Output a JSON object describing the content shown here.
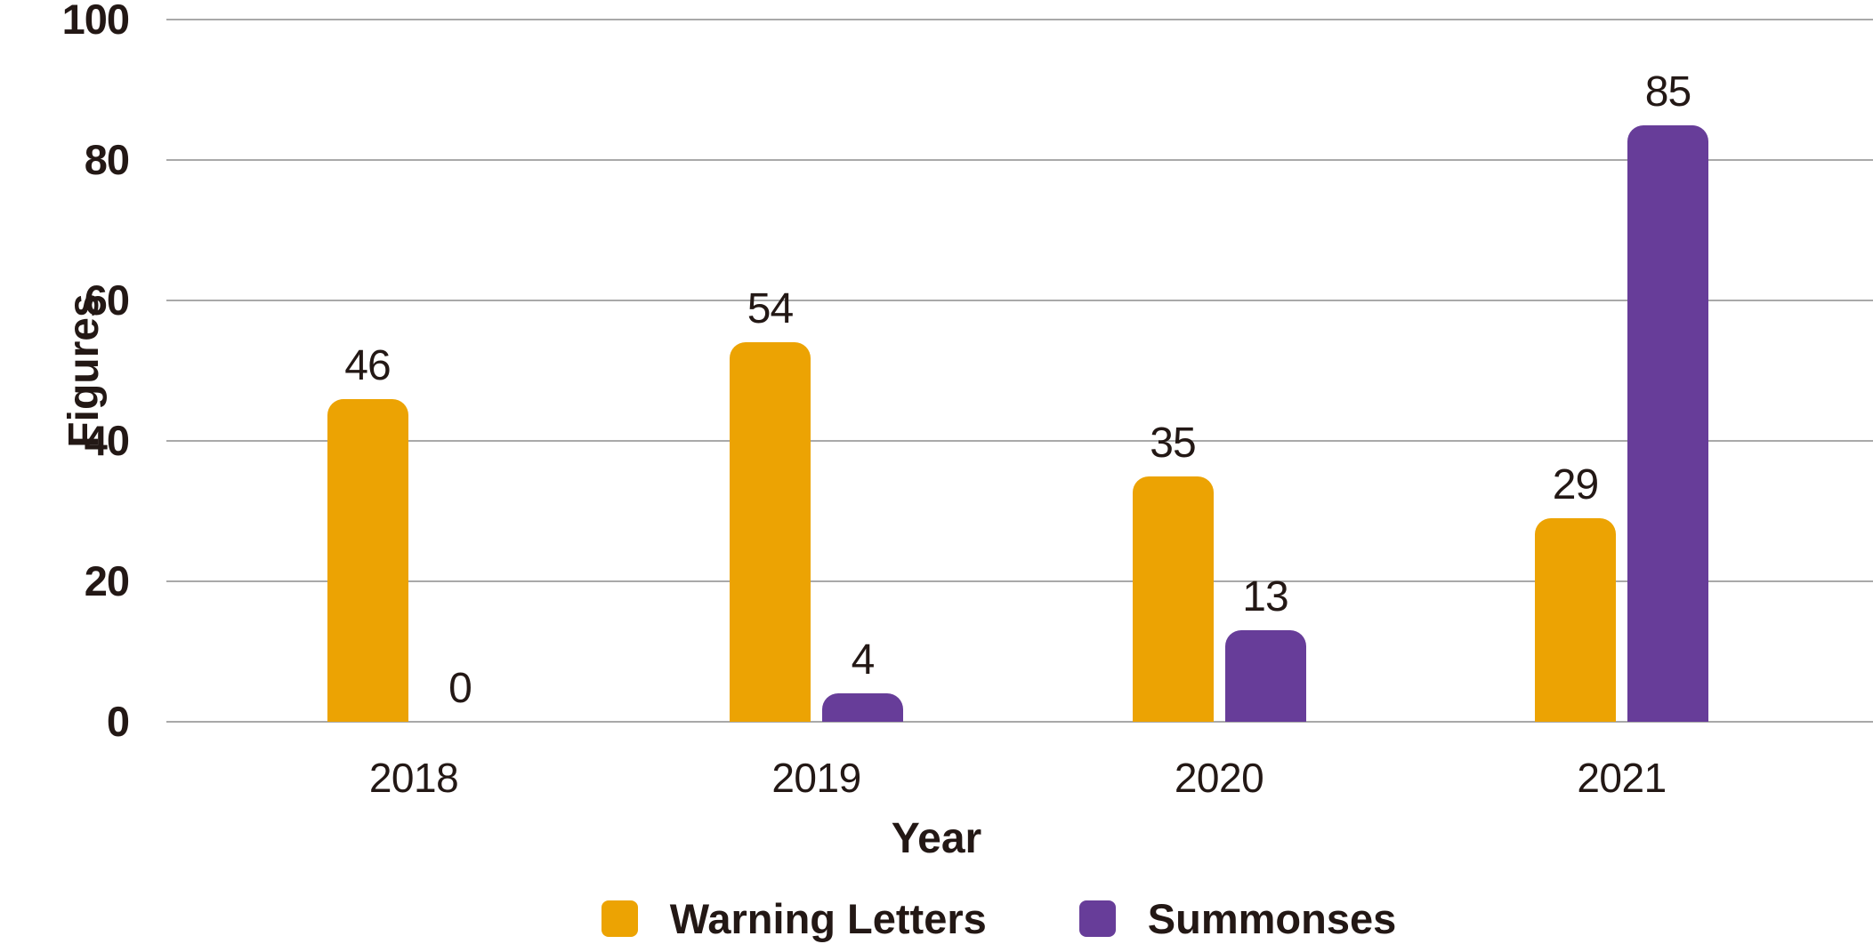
{
  "chart_data": {
    "type": "bar",
    "title": "",
    "categories": [
      "2018",
      "2019",
      "2020",
      "2021"
    ],
    "series": [
      {
        "name": "Warning Letters",
        "color": "#ECA303",
        "values": [
          46,
          54,
          35,
          29
        ]
      },
      {
        "name": "Summonses",
        "color": "#673D99",
        "values": [
          0,
          4,
          13,
          85
        ]
      }
    ],
    "data_labels": [
      [
        "46",
        "0"
      ],
      [
        "54",
        "4"
      ],
      [
        "35",
        "13"
      ],
      [
        "29",
        "85"
      ]
    ],
    "xlabel": "Year",
    "ylabel": "Figures",
    "ylim": [
      0,
      100
    ],
    "yticks": [
      "0",
      "20",
      "40",
      "60",
      "80",
      "100"
    ],
    "grid": true,
    "legend_position": "bottom"
  },
  "colors": {
    "warning_letters": "#ECA303",
    "summonses": "#673D99",
    "text": "#231815",
    "gridline": "#a9a9a9",
    "background": "#ffffff"
  }
}
